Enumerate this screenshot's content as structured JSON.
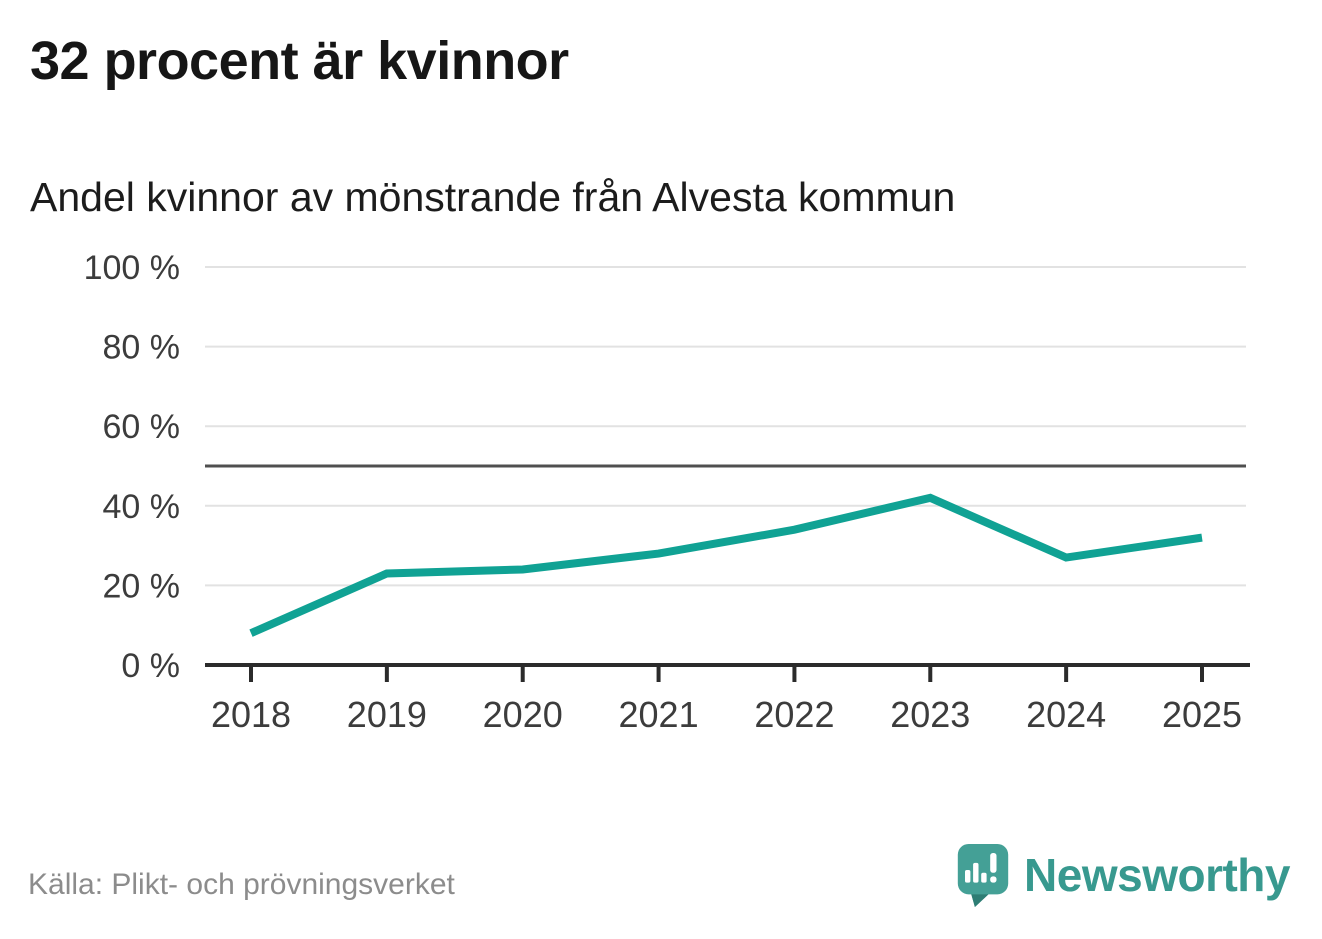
{
  "header": {
    "title": "32 procent är kvinnor"
  },
  "chart_data": {
    "type": "line",
    "title": "Andel kvinnor av mönstrande från Alvesta kommun",
    "categories": [
      "2018",
      "2019",
      "2020",
      "2021",
      "2022",
      "2023",
      "2024",
      "2025"
    ],
    "values": [
      8,
      23,
      24,
      28,
      34,
      42,
      27,
      32
    ],
    "unit": "%",
    "ylim": [
      0,
      100
    ],
    "yticks": [
      0,
      20,
      40,
      60,
      80,
      100
    ],
    "ytick_labels": [
      "0 %",
      "20 %",
      "40 %",
      "60 %",
      "80 %",
      "100 %"
    ],
    "reference_line": 50,
    "grid": true,
    "legend": "none",
    "line_color": "#10a294",
    "grid_color": "#e2e2e2",
    "reference_color": "#4f4f4f",
    "axis_color": "#2b2b2b"
  },
  "footer": {
    "source": "Källa: Plikt- och prövningsverket",
    "brand": "Newsworthy",
    "brand_color": "#38998f"
  }
}
